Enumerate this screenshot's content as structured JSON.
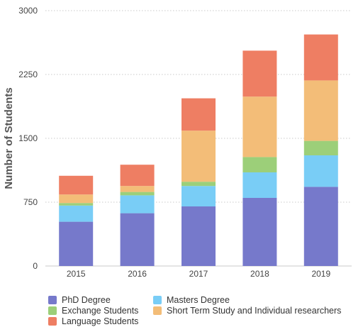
{
  "chart_data": {
    "type": "bar",
    "stacked": true,
    "categories": [
      "2015",
      "2016",
      "2017",
      "2018",
      "2019"
    ],
    "series": [
      {
        "name": "PhD Degree",
        "color": "#7679cb",
        "values": [
          520,
          620,
          700,
          800,
          930
        ]
      },
      {
        "name": "Masters Degree",
        "color": "#79cdf6",
        "values": [
          190,
          210,
          240,
          300,
          370
        ]
      },
      {
        "name": "Exchange Students",
        "color": "#9ccf79",
        "values": [
          30,
          40,
          50,
          180,
          170
        ]
      },
      {
        "name": "Short Term Study and Individual researchers",
        "color": "#f3bd78",
        "values": [
          100,
          70,
          600,
          710,
          710
        ]
      },
      {
        "name": "Language Students",
        "color": "#ee7e63",
        "values": [
          220,
          250,
          380,
          540,
          540
        ]
      }
    ],
    "ylabel": "Number of Students",
    "xlabel": "",
    "ylim": [
      0,
      3000
    ],
    "yticks": [
      "0",
      "750",
      "1500",
      "2250",
      "3000"
    ],
    "grid": true,
    "legend_position": "bottom-left"
  }
}
